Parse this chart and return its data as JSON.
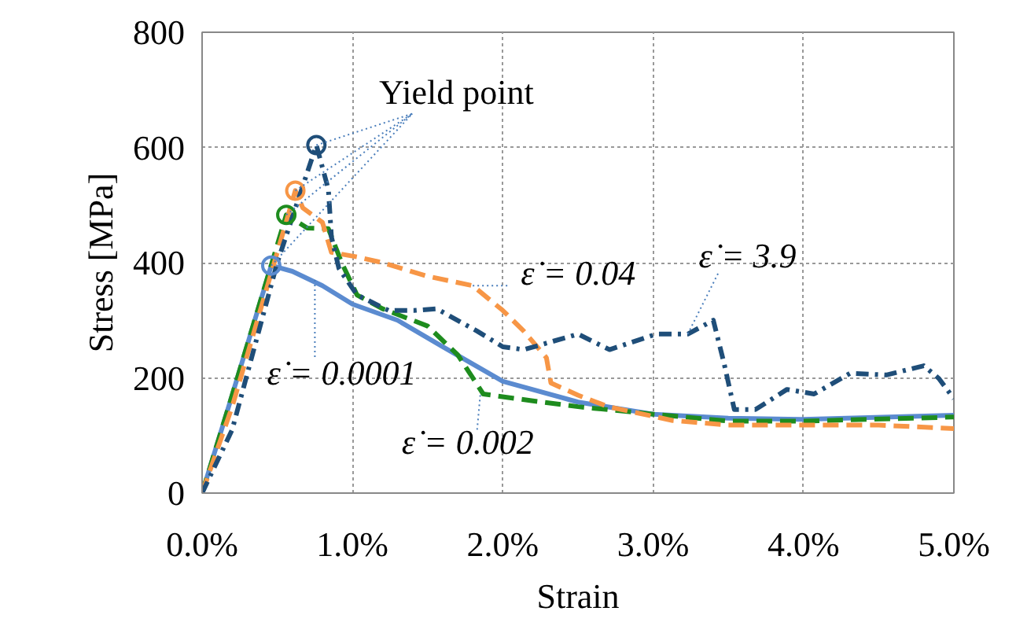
{
  "chart_data": {
    "type": "line",
    "xlabel": "Strain",
    "ylabel": "Stress [MPa]",
    "xlim": [
      0,
      0.05
    ],
    "ylim": [
      0,
      800
    ],
    "xticks": [
      {
        "value": 0,
        "label": "0.0%"
      },
      {
        "value": 0.01,
        "label": "1.0%"
      },
      {
        "value": 0.02,
        "label": "2.0%"
      },
      {
        "value": 0.03,
        "label": "3.0%"
      },
      {
        "value": 0.04,
        "label": "4.0%"
      },
      {
        "value": 0.05,
        "label": "5.0%"
      }
    ],
    "yticks": [
      0,
      200,
      400,
      600,
      800
    ],
    "grid": true,
    "series": [
      {
        "color": "#5b8bd0",
        "line_style": "solid",
        "x": [
          0,
          0.002,
          0.0046,
          0.006,
          0.008,
          0.01,
          0.013,
          0.016,
          0.02,
          0.025,
          0.03,
          0.035,
          0.04,
          0.05
        ],
        "values": [
          0,
          170,
          395,
          385,
          360,
          328,
          300,
          254,
          194,
          158,
          137,
          130,
          128,
          135
        ]
      },
      {
        "color": "#1e8c1e",
        "line_style": "dashed",
        "x": [
          0,
          0.002,
          0.0056,
          0.007,
          0.0084,
          0.0093,
          0.0103,
          0.012,
          0.015,
          0.017,
          0.0187,
          0.022,
          0.025,
          0.03,
          0.035,
          0.04,
          0.05
        ],
        "values": [
          0,
          170,
          483,
          460,
          459,
          399,
          344,
          320,
          290,
          240,
          172,
          160,
          150,
          137,
          125,
          125,
          132
        ]
      },
      {
        "color": "#f79646",
        "line_style": "dashed",
        "x": [
          0,
          0.002,
          0.0062,
          0.0067,
          0.008,
          0.0086,
          0.0103,
          0.012,
          0.0149,
          0.018,
          0.02,
          0.0214,
          0.0229,
          0.0232,
          0.025,
          0.027,
          0.0313,
          0.035,
          0.04,
          0.045,
          0.05
        ],
        "values": [
          0,
          150,
          525,
          495,
          470,
          418,
          410,
          400,
          377,
          360,
          317,
          281,
          235,
          191,
          170,
          150,
          126,
          118,
          118,
          118,
          112
        ]
      },
      {
        "color": "#1f4e79",
        "line_style": "dashdot",
        "x": [
          0,
          0.002,
          0.005,
          0.0076,
          0.0084,
          0.0086,
          0.0091,
          0.0103,
          0.0124,
          0.0141,
          0.0156,
          0.0183,
          0.02,
          0.0214,
          0.025,
          0.0271,
          0.0302,
          0.0323,
          0.034,
          0.0347,
          0.0354,
          0.0368,
          0.0389,
          0.0407,
          0.0431,
          0.0455,
          0.048,
          0.049,
          0.05
        ],
        "values": [
          0,
          110,
          400,
          604,
          527,
          445,
          390,
          344,
          317,
          317,
          320,
          281,
          254,
          249,
          276,
          249,
          276,
          276,
          300,
          227,
          145,
          145,
          180,
          172,
          208,
          205,
          221,
          199,
          164
        ]
      },
      {
        "type": "scatter",
        "marker": "circle",
        "x": [
          0.0046,
          0.0056,
          0.0062,
          0.0076
        ],
        "values": [
          395,
          483,
          525,
          604
        ],
        "colors": [
          "#5b8bd0",
          "#1e8c1e",
          "#f79646",
          "#1f4e79"
        ]
      }
    ],
    "annotations": [
      {
        "text": "Yield point",
        "x": 0.0076,
        "y": 604
      },
      {
        "text": "ε̇ = 0.0001",
        "x": 0.0075,
        "y": 370
      },
      {
        "text": "ε̇ = 0.04",
        "x": 0.018,
        "y": 360
      },
      {
        "text": "ε̇ = 3.9",
        "x": 0.0323,
        "y": 276
      },
      {
        "text": "ε̇ = 0.002",
        "x": 0.0185,
        "y": 170
      }
    ]
  }
}
